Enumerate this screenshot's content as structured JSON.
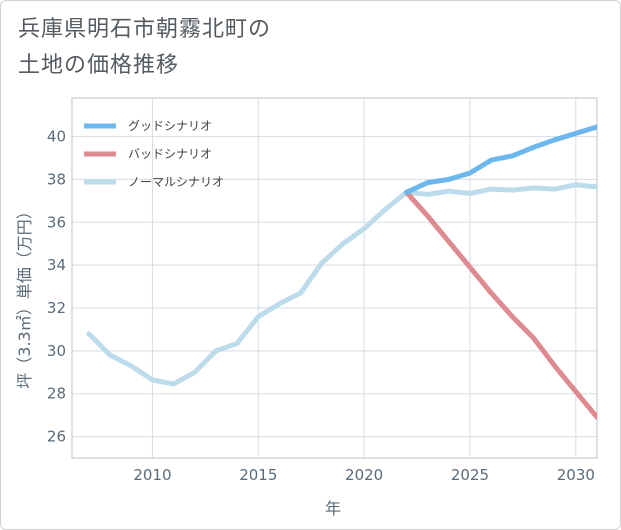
{
  "title": {
    "line1": "兵庫県明石市朝霧北町の",
    "line2": "土地の価格推移"
  },
  "chart_data": {
    "type": "line",
    "xlabel": "年",
    "ylabel": "坪（3.3㎡）単価（万円）",
    "xlim": [
      2006.2,
      2031
    ],
    "ylim": [
      25,
      41.8
    ],
    "x_ticks": [
      2010,
      2015,
      2020,
      2025,
      2030
    ],
    "y_ticks": [
      26,
      28,
      30,
      32,
      34,
      36,
      38,
      40
    ],
    "grid": true,
    "legend_position": "top-left",
    "series": [
      {
        "name": "グッドシナリオ",
        "color": "#6cb8ee",
        "x": [
          2022,
          2023,
          2024,
          2025,
          2026,
          2027,
          2028,
          2029,
          2030,
          2031
        ],
        "y": [
          37.4,
          37.85,
          38.0,
          38.3,
          38.9,
          39.1,
          39.5,
          39.85,
          40.15,
          40.45
        ]
      },
      {
        "name": "バッドシナリオ",
        "color": "#de8a91",
        "x": [
          2022,
          2023,
          2024,
          2025,
          2026,
          2027,
          2028,
          2029,
          2030,
          2031
        ],
        "y": [
          37.4,
          36.3,
          35.1,
          33.9,
          32.7,
          31.6,
          30.6,
          29.3,
          28.1,
          26.9
        ]
      },
      {
        "name": "ノーマルシナリオ",
        "color": "#bcdcec",
        "x": [
          2007,
          2008,
          2009,
          2010,
          2011,
          2012,
          2013,
          2014,
          2015,
          2016,
          2017,
          2018,
          2019,
          2020,
          2021,
          2022,
          2023,
          2024,
          2025,
          2026,
          2027,
          2028,
          2029,
          2030,
          2031
        ],
        "y": [
          30.8,
          29.8,
          29.3,
          28.65,
          28.45,
          29.0,
          30.0,
          30.35,
          31.6,
          32.2,
          32.7,
          34.1,
          35.0,
          35.7,
          36.6,
          37.4,
          37.3,
          37.45,
          37.35,
          37.55,
          37.5,
          37.6,
          37.55,
          37.75,
          37.65
        ]
      }
    ]
  }
}
